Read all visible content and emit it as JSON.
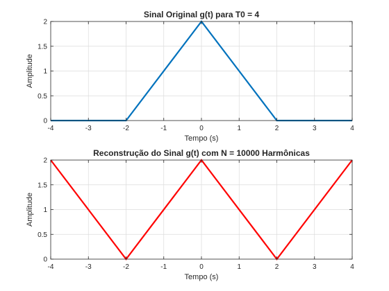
{
  "chart_data": [
    {
      "type": "line",
      "title": "Sinal Original g(t) para T0 = 4",
      "xlabel": "Tempo (s)",
      "ylabel": "Amplitude",
      "xlim": [
        -4,
        4
      ],
      "ylim": [
        0,
        2
      ],
      "xticks": [
        -4,
        -3,
        -2,
        -1,
        0,
        1,
        2,
        3,
        4
      ],
      "yticks": [
        0,
        0.5,
        1,
        1.5,
        2
      ],
      "grid": true,
      "series": [
        {
          "color": "#0072BD",
          "x": [
            -4,
            -2,
            0,
            2,
            4
          ],
          "y": [
            0,
            0,
            2,
            0,
            0
          ]
        }
      ]
    },
    {
      "type": "line",
      "title": "Reconstrução do Sinal g(t) com N = 10000 Harmônicas",
      "xlabel": "Tempo (s)",
      "ylabel": "Amplitude",
      "xlim": [
        -4,
        4
      ],
      "ylim": [
        0,
        2
      ],
      "xticks": [
        -4,
        -3,
        -2,
        -1,
        0,
        1,
        2,
        3,
        4
      ],
      "yticks": [
        0,
        0.5,
        1,
        1.5,
        2
      ],
      "grid": true,
      "series": [
        {
          "color": "#FF0000",
          "x": [
            -4,
            -2,
            0,
            2,
            4
          ],
          "y": [
            2,
            0,
            2,
            0,
            2
          ]
        }
      ]
    }
  ]
}
